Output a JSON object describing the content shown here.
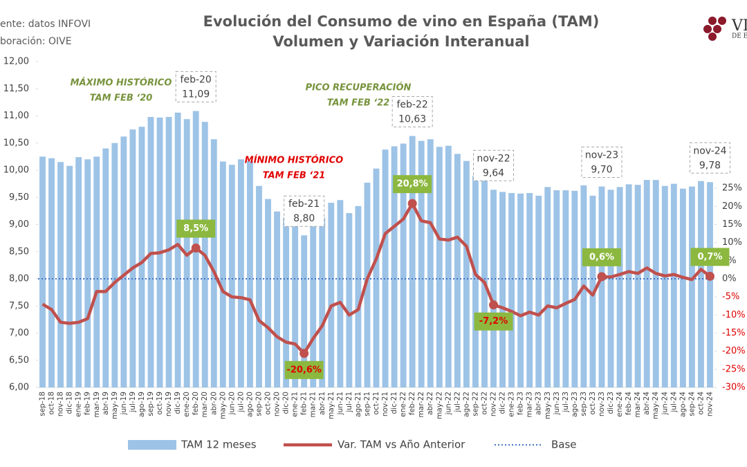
{
  "chart_data": {
    "type": "bar_line",
    "title": [
      "Evolución del Consumo de vino en España (TAM)",
      "Volumen y Variación Interanual"
    ],
    "source": [
      "ente: datos INFOVI",
      "boración: OIVE"
    ],
    "logo_text": [
      "VI",
      "DE E"
    ],
    "categories": [
      "sep-18",
      "oct-18",
      "nov-18",
      "dic-18",
      "ene-19",
      "feb-19",
      "mar-19",
      "abr-19",
      "may-19",
      "jun-19",
      "jul-19",
      "ago-19",
      "sep-19",
      "oct-19",
      "nov-19",
      "dic-19",
      "ene-20",
      "feb-20",
      "mar-20",
      "abr-20",
      "may-20",
      "jun-20",
      "jul-20",
      "ago-20",
      "sep-20",
      "oct-20",
      "nov-20",
      "dic-20",
      "ene-21",
      "feb-21",
      "mar-21",
      "abr-21",
      "may-21",
      "jun-21",
      "jul-21",
      "ago-21",
      "sep-21",
      "oct-21",
      "nov-21",
      "dic-21",
      "ene-22",
      "feb-22",
      "mar-22",
      "abr-22",
      "may-22",
      "jun-22",
      "jul-22",
      "ago-22",
      "sep-22",
      "oct-22",
      "nov-22",
      "dic-22",
      "ene-23",
      "feb-23",
      "mar-23",
      "abr-23",
      "may-23",
      "jun-23",
      "jul-23",
      "ago-23",
      "sep-23",
      "oct-23",
      "nov-23",
      "dic-23",
      "ene-24",
      "feb-24",
      "mar-24",
      "abr-24",
      "may-24",
      "jun-24",
      "jul-24",
      "ago-24",
      "sep-24",
      "oct-24",
      "nov-24"
    ],
    "series": [
      {
        "name": "TAM 12 meses",
        "type": "bar",
        "color": "#9dc3e6",
        "values": [
          10.25,
          10.22,
          10.15,
          10.08,
          10.24,
          10.2,
          10.25,
          10.4,
          10.5,
          10.62,
          10.75,
          10.8,
          10.98,
          10.97,
          10.98,
          11.06,
          10.94,
          11.09,
          10.89,
          10.57,
          10.16,
          10.1,
          10.2,
          10.17,
          9.71,
          9.47,
          9.24,
          9.13,
          9.0,
          8.8,
          9.07,
          9.13,
          9.4,
          9.45,
          9.21,
          9.34,
          9.77,
          10.03,
          10.38,
          10.44,
          10.49,
          10.63,
          10.54,
          10.57,
          10.43,
          10.45,
          10.3,
          10.17,
          9.9,
          10.0,
          9.64,
          9.6,
          9.58,
          9.57,
          9.58,
          9.53,
          9.69,
          9.63,
          9.63,
          9.62,
          9.72,
          9.53,
          9.7,
          9.64,
          9.69,
          9.74,
          9.73,
          9.82,
          9.82,
          9.71,
          9.75,
          9.66,
          9.7,
          9.8,
          9.78
        ],
        "value_labels": [
          null,
          null,
          null,
          null,
          null,
          null,
          null,
          null,
          null,
          null,
          null,
          null,
          null,
          null,
          null,
          null,
          null,
          "11,09",
          null,
          null,
          null,
          null,
          null,
          null,
          null,
          null,
          null,
          null,
          null,
          "8,80",
          null,
          null,
          null,
          null,
          null,
          null,
          null,
          null,
          null,
          null,
          null,
          "10,63",
          null,
          null,
          null,
          null,
          null,
          null,
          null,
          null,
          "9,64",
          null,
          null,
          null,
          null,
          null,
          null,
          null,
          null,
          null,
          null,
          null,
          "9,70",
          null,
          null,
          null,
          null,
          null,
          null,
          null,
          null,
          null,
          null,
          null,
          "9,78"
        ]
      },
      {
        "name": "Var. TAM vs Año Anterior",
        "type": "line",
        "axis": "y2",
        "color": "#c0504d",
        "values": [
          -7.0,
          -8.5,
          -12,
          -12.3,
          -12,
          -11,
          -3.5,
          -3.5,
          -1,
          1,
          3,
          4.5,
          7,
          7.2,
          8,
          9.5,
          6.5,
          8.5,
          6.5,
          2,
          -3.5,
          -5,
          -5.2,
          -5.8,
          -11.5,
          -13.5,
          -16,
          -17.5,
          -18,
          -20.6,
          -16.5,
          -13,
          -7.5,
          -6.5,
          -10,
          -8.5,
          0,
          5.5,
          12.5,
          14.5,
          16.5,
          20.8,
          16,
          15.5,
          11,
          10.7,
          11.5,
          9,
          1.2,
          -1,
          -7.2,
          -8,
          -9,
          -10.2,
          -9.2,
          -10,
          -7.5,
          -8,
          -6.8,
          -5.7,
          -2,
          -4.5,
          0.6,
          0.5,
          1.2,
          2,
          1.5,
          3,
          1.5,
          0.8,
          1.2,
          0.4,
          -0.2,
          2.6,
          0.7
        ],
        "value_labels": [
          null,
          null,
          null,
          null,
          null,
          null,
          null,
          null,
          null,
          null,
          null,
          null,
          null,
          null,
          null,
          null,
          null,
          "8,5%",
          null,
          null,
          null,
          null,
          null,
          null,
          null,
          null,
          null,
          null,
          null,
          "-20,6%",
          null,
          null,
          null,
          null,
          null,
          null,
          null,
          null,
          null,
          null,
          null,
          "20,8%",
          null,
          null,
          null,
          null,
          null,
          null,
          null,
          null,
          "-7,2%",
          null,
          null,
          null,
          null,
          null,
          null,
          null,
          null,
          null,
          null,
          null,
          "0,6%",
          null,
          null,
          null,
          null,
          null,
          null,
          null,
          null,
          null,
          null,
          null,
          "0,7%"
        ]
      }
    ],
    "base": {
      "name": "Base",
      "value": 0,
      "axis": "y2",
      "color": "#4472c4"
    },
    "annotations": [
      {
        "text": [
          "MÁXIMO HISTÓRICO",
          "TAM FEB ‘20"
        ],
        "color": "#77933c"
      },
      {
        "text": [
          "MÍNIMO HISTÓRICO",
          "TAM FEB ‘21"
        ],
        "color": "#e00000"
      },
      {
        "text": [
          "PICO RECUPERACIÓN",
          "TAM FEB ‘22"
        ],
        "color": "#77933c"
      }
    ],
    "ylim": [
      6,
      12
    ],
    "yticks": [
      {
        "value": 6,
        "label": "6,00"
      },
      {
        "value": 6.5,
        "label": "6,50"
      },
      {
        "value": 7,
        "label": "7,00"
      },
      {
        "value": 7.5,
        "label": "7,50"
      },
      {
        "value": 8,
        "label": "8,00"
      },
      {
        "value": 8.5,
        "label": "8,50"
      },
      {
        "value": 9,
        "label": "9,00"
      },
      {
        "value": 9.5,
        "label": "9,50"
      },
      {
        "value": 10,
        "label": "10,00"
      },
      {
        "value": 10.5,
        "label": "10,50"
      },
      {
        "value": 11,
        "label": "11,00"
      },
      {
        "value": 11.5,
        "label": "11,50"
      },
      {
        "value": 12,
        "label": "12,00"
      }
    ],
    "y2lim": [
      -30,
      60
    ],
    "y2ticks": [
      {
        "value": -30,
        "label": "-30%"
      },
      {
        "value": -25,
        "label": "-25%"
      },
      {
        "value": -20,
        "label": "-20%"
      },
      {
        "value": -15,
        "label": "-15%"
      },
      {
        "value": -10,
        "label": "-10%"
      },
      {
        "value": -5,
        "label": "-5%"
      },
      {
        "value": 0,
        "label": "0%"
      },
      {
        "value": 5,
        "label": "5%"
      },
      {
        "value": 10,
        "label": "10%"
      },
      {
        "value": 15,
        "label": "15%"
      },
      {
        "value": 20,
        "label": "20%"
      },
      {
        "value": 25,
        "label": "25%"
      }
    ],
    "legend": "bottom"
  }
}
